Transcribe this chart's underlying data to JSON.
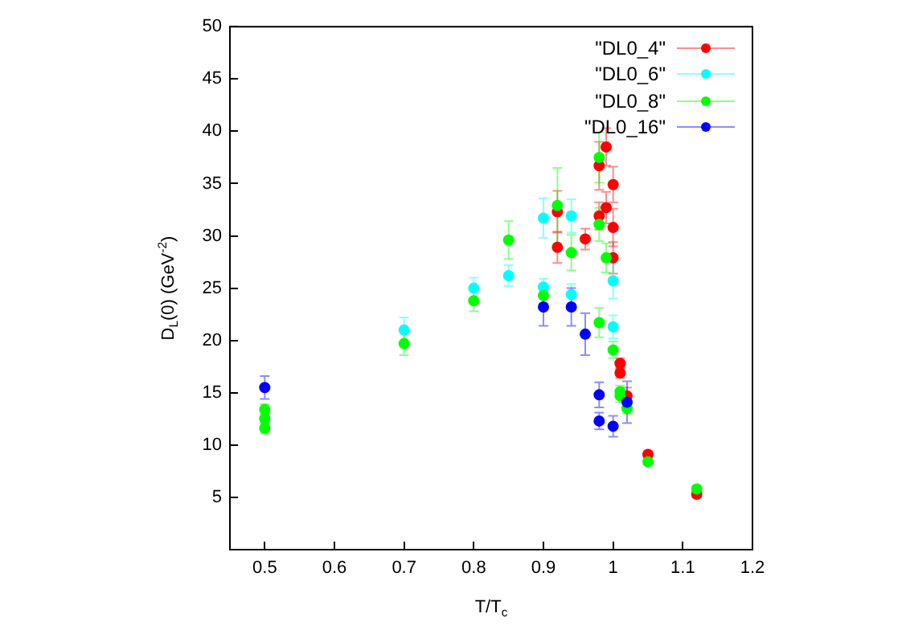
{
  "chart_data": {
    "type": "scatter",
    "xlabel": "T/T$_{c}$",
    "ylabel": "D$_{L}$(0) (GeV$^{-2}$)",
    "xlim": [
      0.45,
      1.2
    ],
    "xticks": [
      0.5,
      0.6,
      0.7,
      0.8,
      0.9,
      1,
      1.1,
      1.2
    ],
    "ylim": [
      0,
      50
    ],
    "yticks": [
      5,
      10,
      15,
      20,
      25,
      30,
      35,
      40,
      45,
      50
    ],
    "grid": false,
    "legend": "top right",
    "marker": "circle",
    "series": [
      {
        "name": "\"DL0_4\"",
        "color": "#ff0000",
        "x": [
          0.92,
          0.92,
          0.96,
          0.98,
          0.98,
          0.99,
          0.99,
          1.0,
          1.0,
          1.0,
          1.01,
          1.01,
          1.02,
          1.05,
          1.12
        ],
        "values": [
          32.3,
          28.9,
          29.7,
          36.7,
          31.9,
          38.5,
          32.7,
          34.9,
          30.8,
          27.9,
          17.8,
          16.9,
          14.7,
          9.1,
          5.3
        ],
        "errors": [
          2,
          1.5,
          1,
          2.3,
          1.3,
          1.8,
          1.5,
          1.7,
          1.8,
          1.5,
          0.5,
          0.5,
          0.8,
          0.3,
          0.3
        ]
      },
      {
        "name": "\"DL0_6\"",
        "color": "#00ffff",
        "x": [
          0.7,
          0.8,
          0.85,
          0.9,
          0.9,
          0.94,
          0.94,
          1.0,
          1.0
        ],
        "values": [
          21.0,
          25.0,
          26.2,
          31.7,
          25.1,
          31.9,
          24.4,
          25.7,
          21.3
        ],
        "errors": [
          1.2,
          1,
          1,
          1.9,
          0.8,
          1.6,
          1,
          1.7,
          1.1
        ]
      },
      {
        "name": "\"DL0_8\"",
        "color": "#00ff00",
        "x": [
          0.5,
          0.5,
          0.5,
          0.7,
          0.8,
          0.85,
          0.9,
          0.92,
          0.94,
          0.98,
          0.98,
          0.98,
          0.99,
          1.0,
          1.01,
          1.01,
          1.02,
          1.05,
          1.12
        ],
        "values": [
          13.4,
          12.5,
          11.6,
          19.7,
          23.8,
          29.6,
          24.3,
          32.9,
          28.4,
          37.5,
          31.1,
          21.7,
          27.9,
          19.1,
          15.1,
          14.7,
          13.5,
          8.4,
          5.8
        ],
        "errors": [
          0.5,
          0.5,
          0.5,
          1.1,
          1,
          1.8,
          0.8,
          3.6,
          1.7,
          2.4,
          1.6,
          1.4,
          1.4,
          0.8,
          0.6,
          0.6,
          0.5,
          0.3,
          0.3
        ]
      },
      {
        "name": "\"DL0_16\"",
        "color": "#0000ff",
        "x": [
          0.5,
          0.9,
          0.94,
          0.96,
          0.98,
          0.98,
          1.0,
          1.02
        ],
        "values": [
          15.5,
          23.2,
          23.2,
          20.6,
          14.8,
          12.3,
          11.8,
          14.1
        ],
        "errors": [
          1.1,
          1.8,
          1.8,
          2,
          1.2,
          0.8,
          1,
          2
        ]
      }
    ]
  }
}
